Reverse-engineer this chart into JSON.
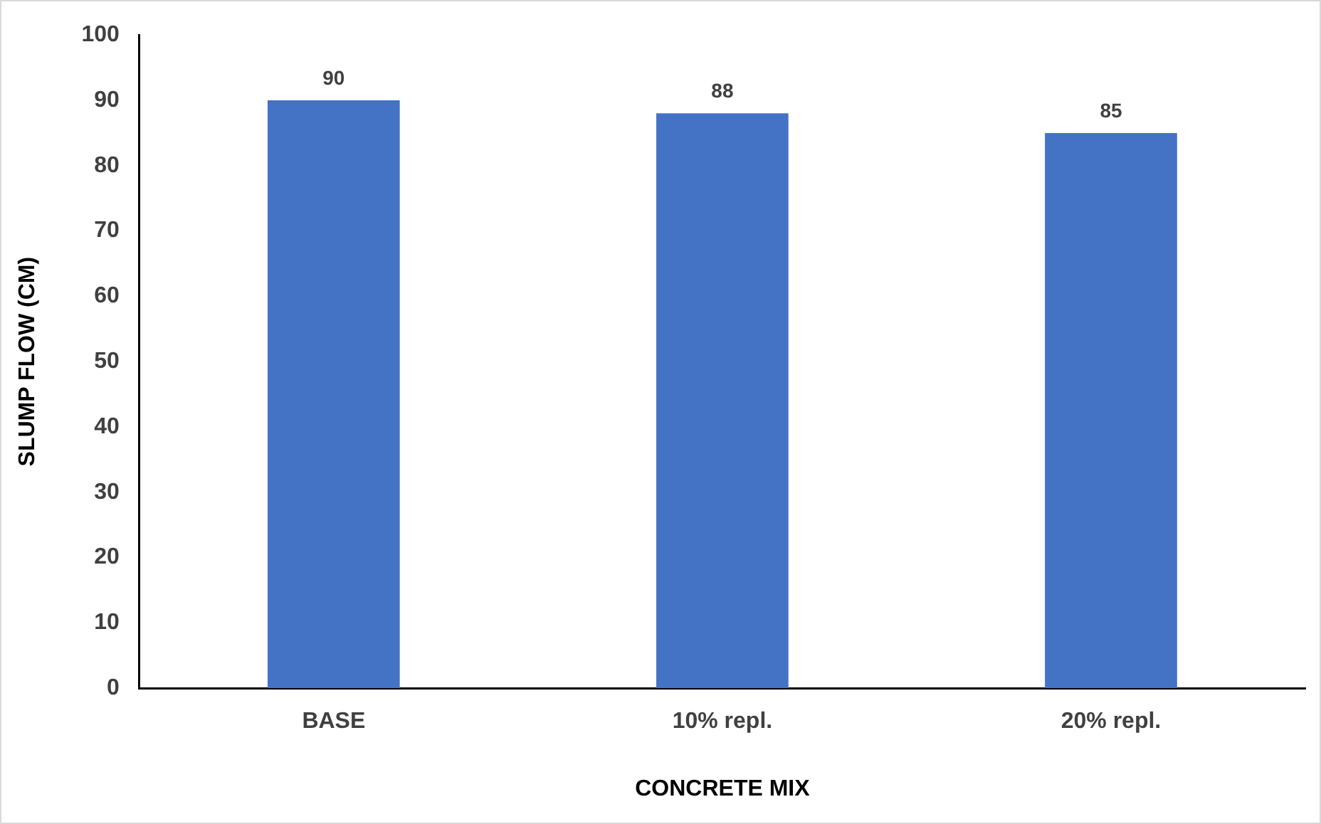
{
  "chart_data": {
    "type": "bar",
    "xlabel": "CONCRETE MIX",
    "ylabel": "SLUMP FLOW (CM)",
    "categories": [
      "BASE",
      "10% repl.",
      "20% repl."
    ],
    "values": [
      90,
      88,
      85
    ],
    "color": "#4472c4",
    "ylim": [
      0,
      100
    ],
    "yticks": [
      0,
      10,
      20,
      30,
      40,
      50,
      60,
      70,
      80,
      90,
      100
    ],
    "grid": false,
    "legend": false,
    "data_labels": true
  }
}
